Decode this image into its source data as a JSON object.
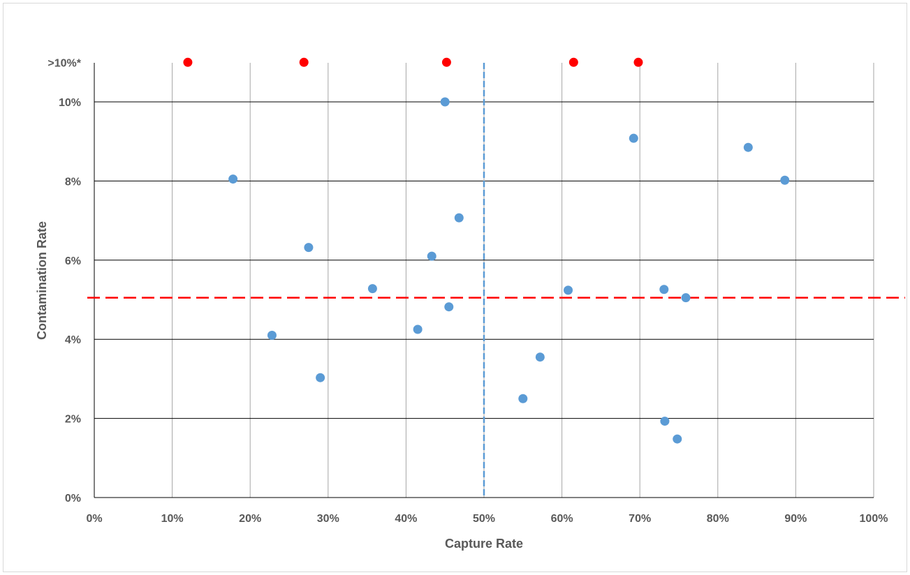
{
  "chart_data": {
    "type": "scatter",
    "title": "",
    "xlabel": "Capture Rate",
    "ylabel": "Contamination Rate",
    "xlim": [
      0,
      100
    ],
    "ylim": [
      0,
      11
    ],
    "x_ticks": [
      "0%",
      "10%",
      "20%",
      "30%",
      "40%",
      "50%",
      "60%",
      "70%",
      "80%",
      "90%",
      "100%"
    ],
    "y_ticks": [
      {
        "value": 0,
        "label": "0%"
      },
      {
        "value": 2,
        "label": "2%"
      },
      {
        "value": 4,
        "label": "4%"
      },
      {
        "value": 6,
        "label": "6%"
      },
      {
        "value": 8,
        "label": "8%"
      },
      {
        "value": 10,
        "label": "10%"
      },
      {
        "value": 11,
        "label": ">10%*"
      }
    ],
    "grid": true,
    "reference_lines": [
      {
        "orientation": "vertical",
        "value": 50,
        "color": "#5b9bd5",
        "style": "dashed"
      },
      {
        "orientation": "horizontal",
        "value": 5.05,
        "color": "#ff0000",
        "style": "dashed"
      }
    ],
    "series": [
      {
        "color": "#5b9bd5",
        "points": [
          {
            "x": 17.8,
            "y": 8.05
          },
          {
            "x": 22.8,
            "y": 4.1
          },
          {
            "x": 27.5,
            "y": 6.32
          },
          {
            "x": 29.0,
            "y": 3.03
          },
          {
            "x": 35.7,
            "y": 5.28
          },
          {
            "x": 41.5,
            "y": 4.25
          },
          {
            "x": 43.3,
            "y": 6.1
          },
          {
            "x": 45.0,
            "y": 10.0
          },
          {
            "x": 45.5,
            "y": 4.82
          },
          {
            "x": 46.8,
            "y": 7.07
          },
          {
            "x": 55.0,
            "y": 2.5
          },
          {
            "x": 57.2,
            "y": 3.55
          },
          {
            "x": 60.8,
            "y": 5.24
          },
          {
            "x": 69.2,
            "y": 9.08
          },
          {
            "x": 73.1,
            "y": 5.26
          },
          {
            "x": 73.2,
            "y": 1.93
          },
          {
            "x": 74.8,
            "y": 1.48
          },
          {
            "x": 75.9,
            "y": 5.05
          },
          {
            "x": 83.9,
            "y": 8.85
          },
          {
            "x": 88.6,
            "y": 8.02
          }
        ]
      },
      {
        "color": "#ff0000",
        "points": [
          {
            "x": 12.0,
            "y": 11
          },
          {
            "x": 26.9,
            "y": 11
          },
          {
            "x": 45.2,
            "y": 11
          },
          {
            "x": 61.5,
            "y": 11
          },
          {
            "x": 69.8,
            "y": 11
          }
        ]
      }
    ]
  }
}
